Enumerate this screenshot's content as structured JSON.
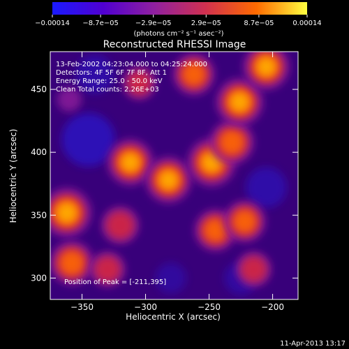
{
  "chart_data": {
    "type": "heatmap",
    "title": "Reconstructed RHESSI Image",
    "xlabel": "Heliocentric X (arcsec)",
    "ylabel": "Heliocentric Y (arcsec)",
    "xlim": [
      -375,
      -180
    ],
    "ylim": [
      283,
      480
    ],
    "xticks": [
      -350,
      -300,
      -250,
      -200
    ],
    "yticks": [
      300,
      350,
      400,
      450
    ],
    "x_tick_labels": [
      "−350",
      "−300",
      "−250",
      "−200"
    ],
    "y_tick_labels": [
      "300",
      "350",
      "400",
      "450"
    ],
    "colorbar": {
      "range": [
        -0.00014,
        0.00014
      ],
      "tick_labels": [
        "−0.00014",
        "−8.7e−05",
        "−2.9e−05",
        "2.9e−05",
        "8.7e−05",
        "0.00014"
      ],
      "tick_values": [
        -0.00014,
        -8.7e-05,
        -2.9e-05,
        2.9e-05,
        8.7e-05,
        0.00014
      ],
      "unit_label": "(photons cm⁻² s⁻¹ asec⁻²)",
      "colors": [
        "#1a1aff",
        "#5000d0",
        "#9020a0",
        "#d03050",
        "#ff6a00",
        "#ffff40"
      ]
    },
    "annotations": [
      "13-Feb-2002 04:23:04.000 to 04:25:24.000",
      "Detectors: 4F 5F 6F 7F 8F, Att 1",
      "Energy Range: 25.0 - 50.0 keV",
      "Clean     Total counts: 2.26E+03",
      "Position of Peak = [-211,395]"
    ],
    "peak_position": [
      -211,
      395
    ],
    "bright_sources": [
      {
        "x": -362,
        "y": 352,
        "intensity": 0.000135
      },
      {
        "x": -358,
        "y": 312,
        "intensity": 0.00011
      },
      {
        "x": -312,
        "y": 392,
        "intensity": 0.00012
      },
      {
        "x": -282,
        "y": 378,
        "intensity": 0.00012
      },
      {
        "x": -248,
        "y": 392,
        "intensity": 0.00013
      },
      {
        "x": -232,
        "y": 408,
        "intensity": 0.00011
      },
      {
        "x": -226,
        "y": 440,
        "intensity": 0.000125
      },
      {
        "x": -262,
        "y": 462,
        "intensity": 0.0001
      },
      {
        "x": -205,
        "y": 468,
        "intensity": 0.00012
      },
      {
        "x": -245,
        "y": 338,
        "intensity": 0.0001
      },
      {
        "x": -222,
        "y": 345,
        "intensity": 0.0001
      },
      {
        "x": -320,
        "y": 342,
        "intensity": 8e-05
      },
      {
        "x": -330,
        "y": 307,
        "intensity": 7e-05
      },
      {
        "x": -305,
        "y": 455,
        "intensity": 6e-05
      },
      {
        "x": -215,
        "y": 307,
        "intensity": 7e-05
      },
      {
        "x": -360,
        "y": 442,
        "intensity": 2e-05
      }
    ],
    "negative_regions": [
      {
        "x": -345,
        "y": 410,
        "intensity": -0.00012
      },
      {
        "x": -340,
        "y": 462,
        "intensity": -6e-05
      },
      {
        "x": -205,
        "y": 372,
        "intensity": -7e-05
      },
      {
        "x": -225,
        "y": 300,
        "intensity": -4e-05
      },
      {
        "x": -280,
        "y": 300,
        "intensity": -3e-05
      }
    ],
    "grid": false
  },
  "footer_timestamp": "11-Apr-2013 13:17"
}
